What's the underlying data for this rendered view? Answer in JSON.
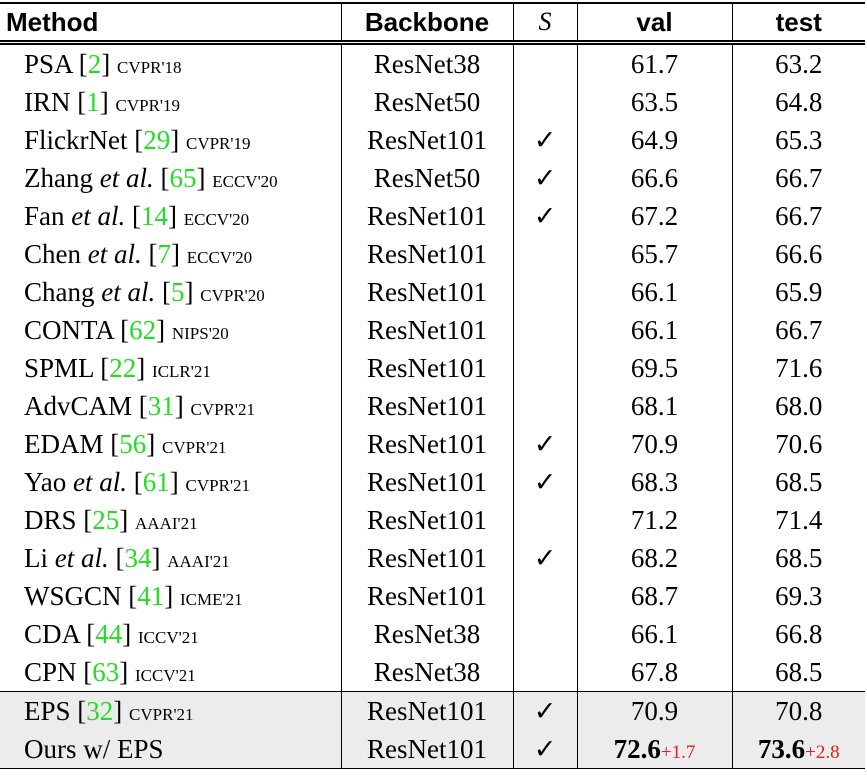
{
  "table": {
    "header": [
      {
        "text": "Method",
        "style": "sans"
      },
      {
        "text": "Backbone",
        "style": "sans"
      },
      {
        "text": "S",
        "style": "italic"
      },
      {
        "text": "val",
        "style": "sans"
      },
      {
        "text": "test",
        "style": "sans"
      }
    ],
    "rows": [
      {
        "method": [
          {
            "text": "PSA ["
          },
          {
            "text": "2",
            "style": "cite"
          },
          {
            "text": "] "
          },
          {
            "text": "CVPR'18",
            "style": "venue"
          }
        ],
        "backbone": "ResNet38",
        "s": null,
        "val": {
          "text": "61.7"
        },
        "test": {
          "text": "63.2"
        }
      },
      {
        "method": [
          {
            "text": "IRN ["
          },
          {
            "text": "1",
            "style": "cite"
          },
          {
            "text": "] "
          },
          {
            "text": "CVPR'19",
            "style": "venue"
          }
        ],
        "backbone": "ResNet50",
        "s": null,
        "val": {
          "text": "63.5"
        },
        "test": {
          "text": "64.8"
        }
      },
      {
        "method": [
          {
            "text": "FlickrNet ["
          },
          {
            "text": "29",
            "style": "cite"
          },
          {
            "text": "] "
          },
          {
            "text": "CVPR'19",
            "style": "venue"
          }
        ],
        "backbone": "ResNet101",
        "s": "✓",
        "val": {
          "text": "64.9"
        },
        "test": {
          "text": "65.3"
        }
      },
      {
        "method": [
          {
            "text": "Zhang "
          },
          {
            "text": "et al.",
            "style": "italic"
          },
          {
            "text": " ["
          },
          {
            "text": "65",
            "style": "cite"
          },
          {
            "text": "] "
          },
          {
            "text": "ECCV'20",
            "style": "venue"
          }
        ],
        "backbone": "ResNet50",
        "s": "✓",
        "val": {
          "text": "66.6"
        },
        "test": {
          "text": "66.7"
        }
      },
      {
        "method": [
          {
            "text": "Fan "
          },
          {
            "text": "et al.",
            "style": "italic"
          },
          {
            "text": " ["
          },
          {
            "text": "14",
            "style": "cite"
          },
          {
            "text": "] "
          },
          {
            "text": "ECCV'20",
            "style": "venue"
          }
        ],
        "backbone": "ResNet101",
        "s": "✓",
        "val": {
          "text": "67.2"
        },
        "test": {
          "text": "66.7"
        }
      },
      {
        "method": [
          {
            "text": "Chen "
          },
          {
            "text": "et al.",
            "style": "italic"
          },
          {
            "text": " ["
          },
          {
            "text": "7",
            "style": "cite"
          },
          {
            "text": "] "
          },
          {
            "text": "ECCV'20",
            "style": "venue"
          }
        ],
        "backbone": "ResNet101",
        "s": null,
        "val": {
          "text": "65.7"
        },
        "test": {
          "text": "66.6"
        }
      },
      {
        "method": [
          {
            "text": "Chang "
          },
          {
            "text": "et al.",
            "style": "italic"
          },
          {
            "text": " ["
          },
          {
            "text": "5",
            "style": "cite"
          },
          {
            "text": "] "
          },
          {
            "text": "CVPR'20",
            "style": "venue"
          }
        ],
        "backbone": "ResNet101",
        "s": null,
        "val": {
          "text": "66.1"
        },
        "test": {
          "text": "65.9"
        }
      },
      {
        "method": [
          {
            "text": "CONTA ["
          },
          {
            "text": "62",
            "style": "cite"
          },
          {
            "text": "] "
          },
          {
            "text": "NIPS'20",
            "style": "venue"
          }
        ],
        "backbone": "ResNet101",
        "s": null,
        "val": {
          "text": "66.1"
        },
        "test": {
          "text": "66.7"
        }
      },
      {
        "method": [
          {
            "text": "SPML ["
          },
          {
            "text": "22",
            "style": "cite"
          },
          {
            "text": "] "
          },
          {
            "text": "ICLR'21",
            "style": "venue"
          }
        ],
        "backbone": "ResNet101",
        "s": null,
        "val": {
          "text": "69.5"
        },
        "test": {
          "text": "71.6"
        }
      },
      {
        "method": [
          {
            "text": "AdvCAM ["
          },
          {
            "text": "31",
            "style": "cite"
          },
          {
            "text": "] "
          },
          {
            "text": "CVPR'21",
            "style": "venue"
          }
        ],
        "backbone": "ResNet101",
        "s": null,
        "val": {
          "text": "68.1"
        },
        "test": {
          "text": "68.0"
        }
      },
      {
        "method": [
          {
            "text": "EDAM ["
          },
          {
            "text": "56",
            "style": "cite"
          },
          {
            "text": "] "
          },
          {
            "text": "CVPR'21",
            "style": "venue"
          }
        ],
        "backbone": "ResNet101",
        "s": "✓",
        "val": {
          "text": "70.9"
        },
        "test": {
          "text": "70.6"
        }
      },
      {
        "method": [
          {
            "text": "Yao "
          },
          {
            "text": "et al.",
            "style": "italic"
          },
          {
            "text": " ["
          },
          {
            "text": "61",
            "style": "cite"
          },
          {
            "text": "] "
          },
          {
            "text": "CVPR'21",
            "style": "venue"
          }
        ],
        "backbone": "ResNet101",
        "s": "✓",
        "val": {
          "text": "68.3"
        },
        "test": {
          "text": "68.5"
        }
      },
      {
        "method": [
          {
            "text": "DRS ["
          },
          {
            "text": "25",
            "style": "cite"
          },
          {
            "text": "] "
          },
          {
            "text": "AAAI'21",
            "style": "venue"
          }
        ],
        "backbone": "ResNet101",
        "s": null,
        "val": {
          "text": "71.2"
        },
        "test": {
          "text": "71.4"
        }
      },
      {
        "method": [
          {
            "text": "Li "
          },
          {
            "text": "et al.",
            "style": "italic"
          },
          {
            "text": " ["
          },
          {
            "text": "34",
            "style": "cite"
          },
          {
            "text": "] "
          },
          {
            "text": "AAAI'21",
            "style": "venue"
          }
        ],
        "backbone": "ResNet101",
        "s": "✓",
        "val": {
          "text": "68.2"
        },
        "test": {
          "text": "68.5"
        }
      },
      {
        "method": [
          {
            "text": "WSGCN ["
          },
          {
            "text": "41",
            "style": "cite"
          },
          {
            "text": "] "
          },
          {
            "text": "ICME'21",
            "style": "venue"
          }
        ],
        "backbone": "ResNet101",
        "s": null,
        "val": {
          "text": "68.7"
        },
        "test": {
          "text": "69.3"
        }
      },
      {
        "method": [
          {
            "text": "CDA ["
          },
          {
            "text": "44",
            "style": "cite"
          },
          {
            "text": "] "
          },
          {
            "text": "ICCV'21",
            "style": "venue"
          }
        ],
        "backbone": "ResNet38",
        "s": null,
        "val": {
          "text": "66.1"
        },
        "test": {
          "text": "66.8"
        }
      },
      {
        "method": [
          {
            "text": "CPN ["
          },
          {
            "text": "63",
            "style": "cite"
          },
          {
            "text": "] "
          },
          {
            "text": "ICCV'21",
            "style": "venue"
          }
        ],
        "backbone": "ResNet38",
        "s": null,
        "val": {
          "text": "67.8"
        },
        "test": {
          "text": "68.5"
        }
      },
      {
        "method": [
          {
            "text": "EPS ["
          },
          {
            "text": "32",
            "style": "cite"
          },
          {
            "text": "] "
          },
          {
            "text": "CVPR'21",
            "style": "venue"
          }
        ],
        "backbone": "ResNet101",
        "s": "✓",
        "val": {
          "text": "70.9"
        },
        "test": {
          "text": "70.8"
        },
        "highlight": true,
        "rule_above": true
      },
      {
        "method": [
          {
            "text": "Ours w/ EPS"
          }
        ],
        "backbone": "ResNet101",
        "s": "✓",
        "val": {
          "text": "72.6",
          "delta": "+1.7",
          "bold": true
        },
        "test": {
          "text": "73.6",
          "delta": "+2.8",
          "bold": true
        },
        "highlight": true
      }
    ]
  }
}
